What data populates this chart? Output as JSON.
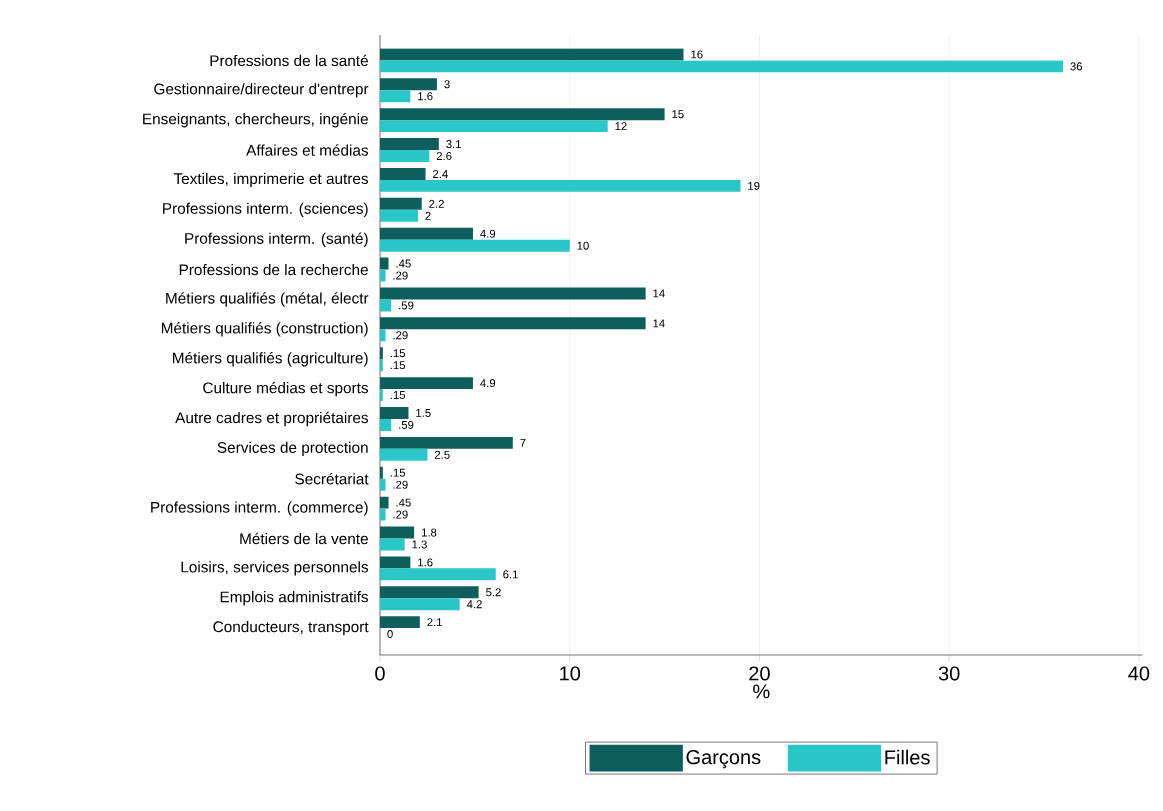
{
  "chart_data": {
    "type": "bar",
    "orientation": "horizontal",
    "xlabel": "%",
    "categories": [
      "Professions de la santé",
      "Gestionnaire/directeur d'entrepr",
      "Enseignants, chercheurs, ingénie",
      "Affaires et médias",
      "Textiles, imprimerie et autres",
      "Professions interm. (sciences)",
      "Professions interm. (santé)",
      "Professions de la recherche",
      "Métiers qualifiés (métal, électr",
      "Métiers qualifiés (construction)",
      "Métiers qualifiés (agriculture)",
      "Culture médias et sports",
      "Autre cadres et propriétaires",
      "Services de protection",
      "Secrétariat",
      "Professions interm. (commerce)",
      "Métiers de la vente",
      "Loisirs, services personnels",
      "Emplois administratifs",
      "Conducteurs, transport"
    ],
    "series": [
      {
        "name": "Garçons",
        "color": "#0d5e5c",
        "values": [
          16,
          3,
          15,
          3.1,
          2.4,
          2.2,
          4.9,
          0.45,
          14,
          14,
          0.15,
          4.9,
          1.5,
          7,
          0.15,
          0.45,
          1.8,
          1.6,
          5.2,
          2.1
        ],
        "value_labels": [
          "16",
          "3",
          "15",
          "3.1",
          "2.4",
          "2.2",
          "4.9",
          ".45",
          "14",
          "14",
          ".15",
          "4.9",
          "1.5",
          "7",
          ".15",
          ".45",
          "1.8",
          "1.6",
          "5.2",
          "2.1"
        ]
      },
      {
        "name": "Filles",
        "color": "#2ac7c9",
        "values": [
          36,
          1.6,
          12,
          2.6,
          19,
          2,
          10,
          0.29,
          0.59,
          0.29,
          0.15,
          0.15,
          0.59,
          2.5,
          0.29,
          0.29,
          1.3,
          6.1,
          4.2,
          0
        ],
        "value_labels": [
          "36",
          "1.6",
          "12",
          "2.6",
          "19",
          "2",
          "10",
          ".29",
          ".59",
          ".29",
          ".15",
          ".15",
          ".59",
          "2.5",
          ".29",
          ".29",
          "1.3",
          "6.1",
          "4.2",
          "0"
        ]
      }
    ],
    "xlim": [
      0,
      40.2
    ],
    "xticks": [
      0,
      10,
      20,
      30,
      40
    ],
    "grid": "x",
    "legend": "bottom"
  }
}
